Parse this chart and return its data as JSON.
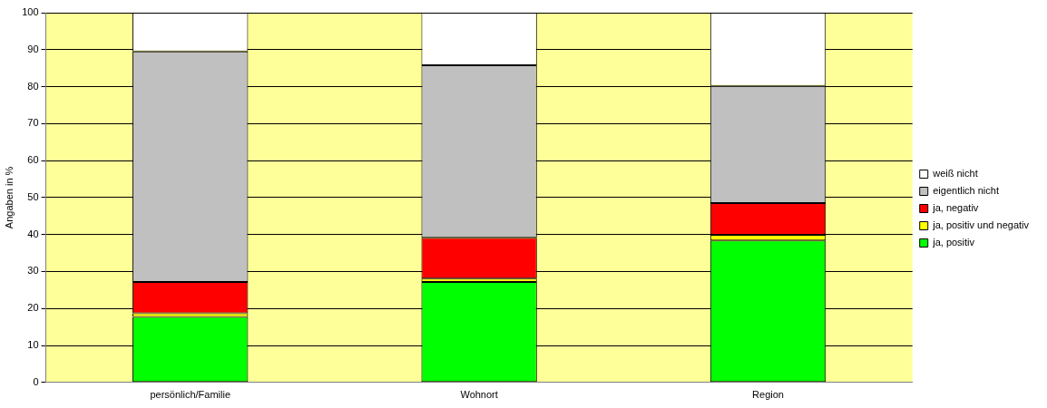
{
  "chart_data": {
    "type": "bar",
    "stacked": true,
    "ylabel": "Angaben in %",
    "categories": [
      "persönlich/Familie",
      "Wohnort",
      "Region"
    ],
    "series": [
      {
        "name": "ja, positiv",
        "color": "#00ff00",
        "values": [
          17.7,
          27.2,
          38.4
        ]
      },
      {
        "name": "ja, positiv und negativ",
        "color": "#ffff00",
        "values": [
          1.0,
          0.9,
          1.5
        ]
      },
      {
        "name": "ja, negativ",
        "color": "#ff0000",
        "values": [
          8.5,
          11.0,
          8.6
        ]
      },
      {
        "name": "eigentlich nicht",
        "color": "#c0c0c0",
        "values": [
          62.3,
          46.7,
          31.7
        ]
      },
      {
        "name": "weiß nicht",
        "color": "#ffffff",
        "values": [
          10.5,
          14.2,
          19.8
        ]
      }
    ],
    "ylim": [
      0,
      100
    ],
    "yticks": [
      0,
      10,
      20,
      30,
      40,
      50,
      60,
      70,
      80,
      90,
      100
    ],
    "grid": "y",
    "legend": "right"
  }
}
